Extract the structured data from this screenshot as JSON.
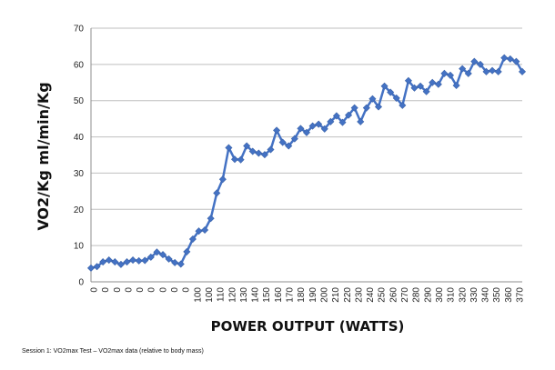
{
  "chart_data": {
    "type": "line",
    "title": "",
    "xlabel": "POWER OUTPUT (WATTS)",
    "ylabel": "VO2/Kg ml/min/Kg",
    "ylim": [
      0,
      70
    ],
    "yticks": [
      0,
      10,
      20,
      30,
      40,
      50,
      60,
      70
    ],
    "grid": "horizontal",
    "legend": "none",
    "line_color": "#4472C4",
    "marker": "diamond",
    "x_tick_labels": [
      "0",
      "0",
      "0",
      "0",
      "0",
      "0",
      "0",
      "0",
      "0",
      "100",
      "100",
      "110",
      "120",
      "130",
      "140",
      "150",
      "160",
      "170",
      "180",
      "190",
      "200",
      "210",
      "220",
      "230",
      "240",
      "250",
      "260",
      "270",
      "280",
      "290",
      "300",
      "310",
      "320",
      "330",
      "340",
      "350",
      "360",
      "370"
    ],
    "series": [
      {
        "name": "",
        "values": [
          3.8,
          4.2,
          5.5,
          6.0,
          5.5,
          4.8,
          5.5,
          6.0,
          5.8,
          5.9,
          6.8,
          8.2,
          7.5,
          6.3,
          5.3,
          4.9,
          8.3,
          11.8,
          14.0,
          14.3,
          17.5,
          24.5,
          28.3,
          37.0,
          33.8,
          33.7,
          37.5,
          36.0,
          35.5,
          35.1,
          36.5,
          41.8,
          38.5,
          37.5,
          39.5,
          42.3,
          41.2,
          43.0,
          43.5,
          42.2,
          44.2,
          45.8,
          44.0,
          46.0,
          48.0,
          44.2,
          48.0,
          50.5,
          48.3,
          54.0,
          52.3,
          50.7,
          48.7,
          55.5,
          53.5,
          54.0,
          52.5,
          55.0,
          54.5,
          57.5,
          57.0,
          54.2,
          58.8,
          57.5,
          60.8,
          60.0,
          58.0,
          58.3,
          58.0,
          61.8,
          61.5,
          60.8,
          58.0
        ]
      }
    ]
  },
  "caption": "Session 1:  VO2max Test – VO2max data (relative to body mass)"
}
